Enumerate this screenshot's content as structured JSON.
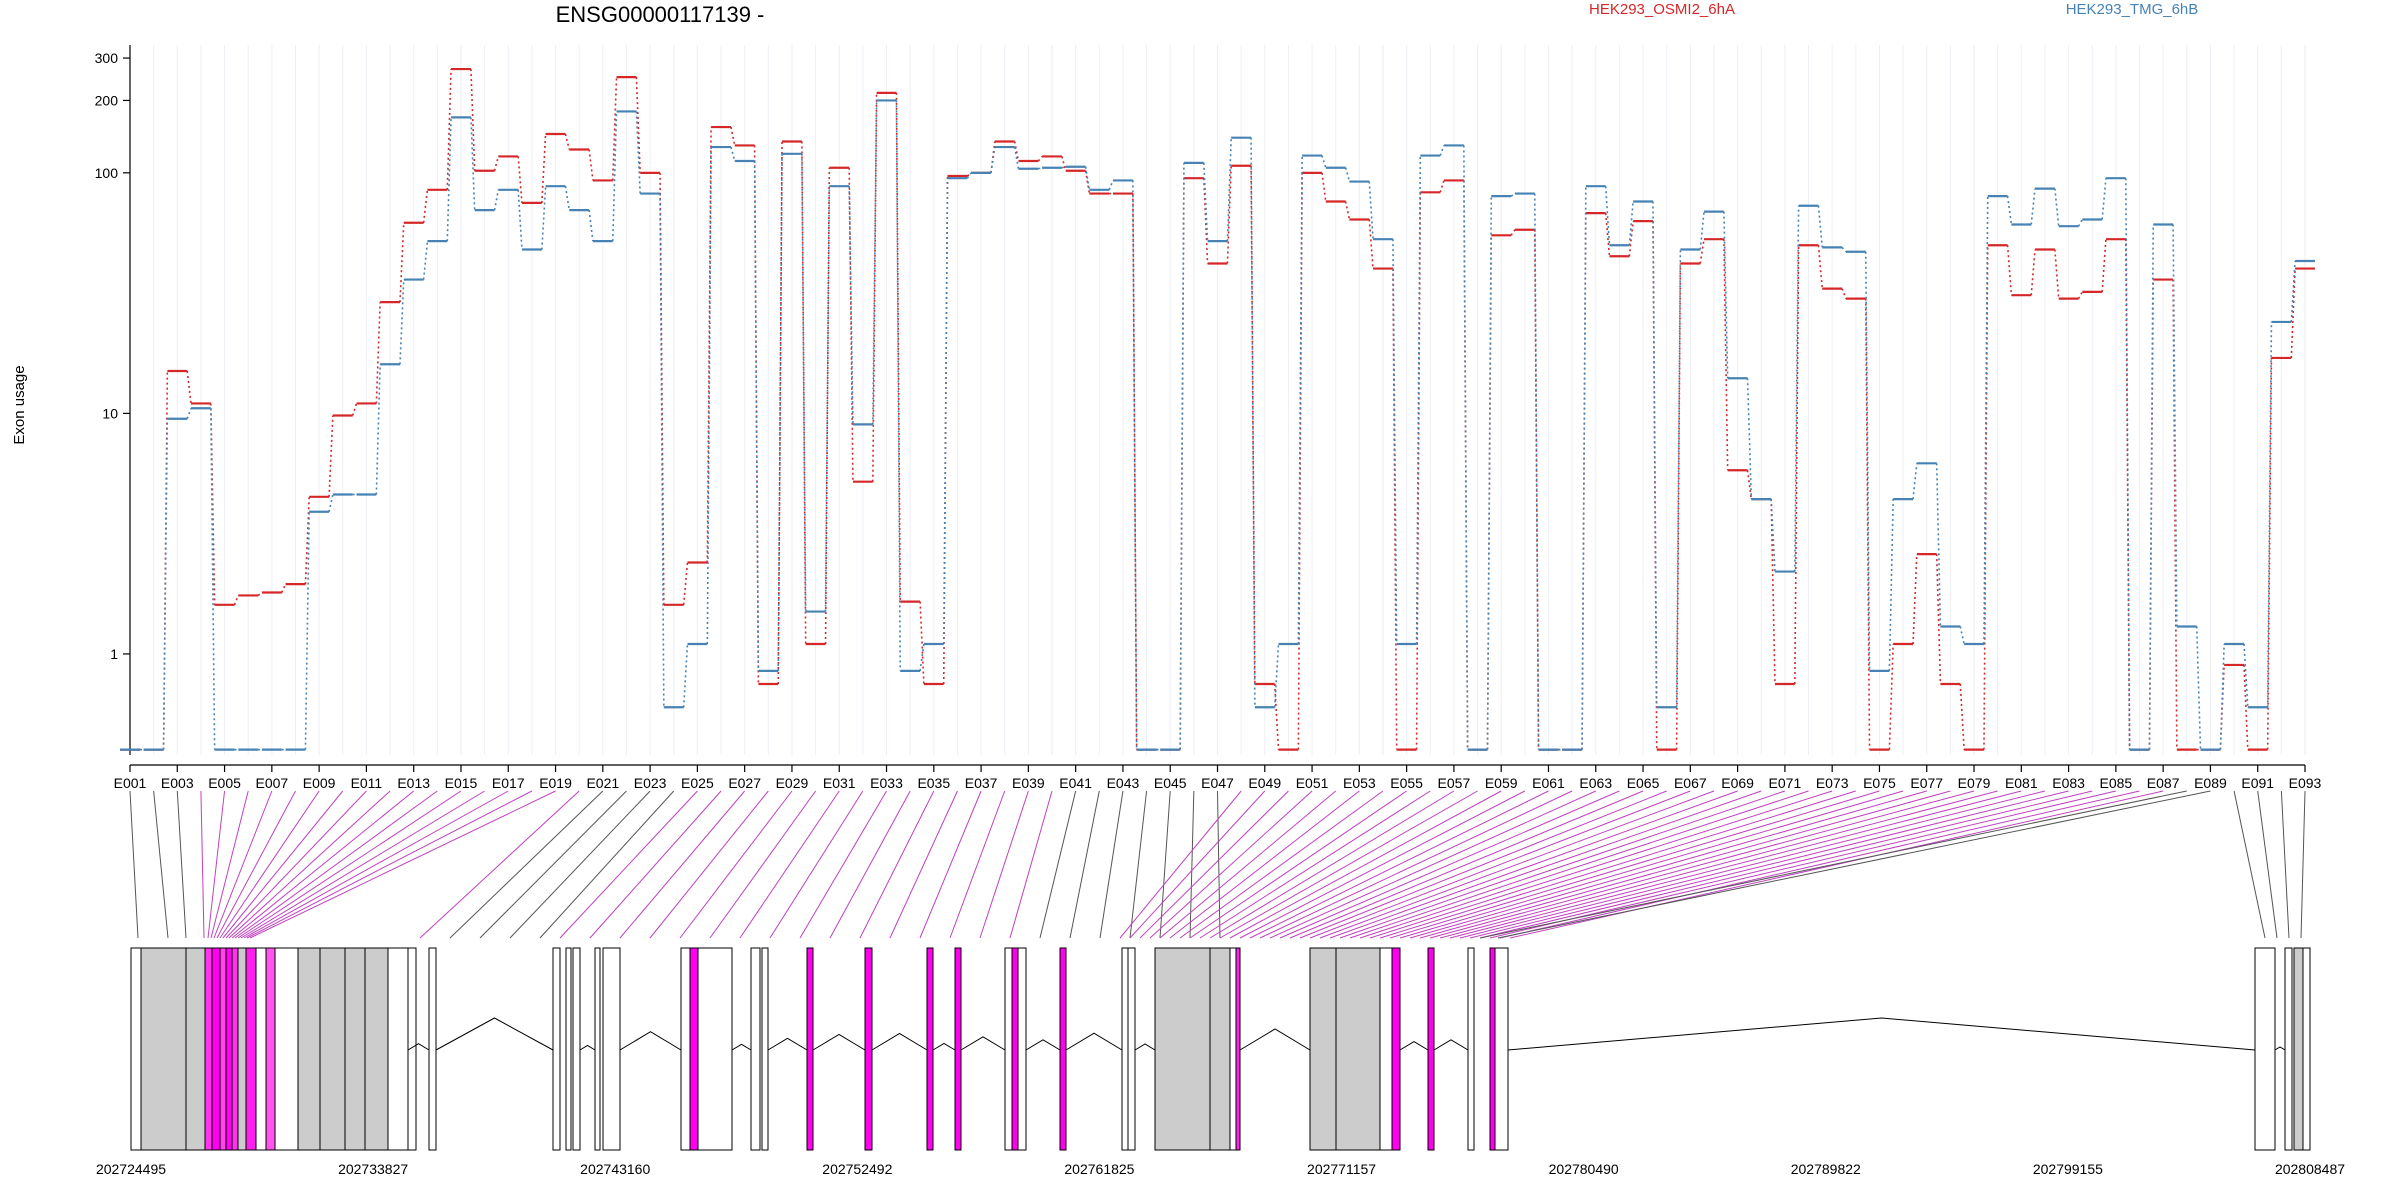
{
  "chart_data": {
    "type": "line",
    "title": "ENSG00000117139 -",
    "ylabel": "Exon usage",
    "xlabel": "",
    "y_scale": "log",
    "ylim": [
      0.38,
      340
    ],
    "y_ticks": [
      1,
      10,
      100,
      200,
      300
    ],
    "grid": "vertical, one faint line per exon",
    "legend_position": "top",
    "categories": [
      "E001",
      "E002",
      "E003",
      "E004",
      "E005",
      "E006",
      "E007",
      "E008",
      "E009",
      "E010",
      "E011",
      "E012",
      "E013",
      "E014",
      "E015",
      "E016",
      "E017",
      "E018",
      "E019",
      "E020",
      "E021",
      "E022",
      "E023",
      "E024",
      "E025",
      "E026",
      "E027",
      "E028",
      "E029",
      "E030",
      "E031",
      "E032",
      "E033",
      "E034",
      "E035",
      "E036",
      "E037",
      "E038",
      "E039",
      "E040",
      "E041",
      "E042",
      "E043",
      "E044",
      "E045",
      "E046",
      "E047",
      "E048",
      "E049",
      "E050",
      "E051",
      "E052",
      "E053",
      "E054",
      "E055",
      "E056",
      "E057",
      "E058",
      "E059",
      "E060",
      "E061",
      "E062",
      "E063",
      "E064",
      "E065",
      "E066",
      "E067",
      "E068",
      "E069",
      "E070",
      "E071",
      "E072",
      "E073",
      "E074",
      "E075",
      "E076",
      "E077",
      "E078",
      "E079",
      "E080",
      "E081",
      "E082",
      "E083",
      "E084",
      "E085",
      "E086",
      "E087",
      "E088",
      "E089",
      "E090",
      "E091",
      "E092",
      "E093"
    ],
    "x_tick_labels": [
      "E001",
      "E003",
      "E005",
      "E007",
      "E009",
      "E011",
      "E013",
      "E015",
      "E017",
      "E019",
      "E021",
      "E023",
      "E025",
      "E027",
      "E029",
      "E031",
      "E033",
      "E035",
      "E037",
      "E039",
      "E041",
      "E043",
      "E045",
      "E047",
      "E049",
      "E051",
      "E053",
      "E055",
      "E057",
      "E059",
      "E061",
      "E063",
      "E065",
      "E067",
      "E069",
      "E071",
      "E073",
      "E075",
      "E077",
      "E079",
      "E081",
      "E083",
      "E085",
      "E087",
      "E089",
      "E091",
      "E093"
    ],
    "series": [
      {
        "name": "HEK293_OSMI2_6hA",
        "color": "#d62728",
        "values": [
          0.4,
          0.4,
          15,
          11,
          1.6,
          1.75,
          1.8,
          1.95,
          4.5,
          9.8,
          11,
          29,
          62,
          85,
          270,
          102,
          117,
          75,
          145,
          125,
          93,
          250,
          100,
          1.6,
          2.4,
          155,
          130,
          0.75,
          135,
          1.1,
          105,
          5.2,
          215,
          1.65,
          0.75,
          97,
          100,
          135,
          112,
          117,
          102,
          82,
          82,
          0.4,
          0.4,
          95,
          42,
          107,
          0.75,
          0.4,
          100,
          76,
          64,
          40,
          0.4,
          83,
          93,
          0.4,
          55,
          58,
          0.4,
          0.4,
          68,
          45,
          63,
          0.4,
          42,
          53,
          5.8,
          4.4,
          0.75,
          50,
          33,
          30,
          0.4,
          1.1,
          2.6,
          0.75,
          0.4,
          50,
          31,
          48,
          30,
          32,
          53,
          0.4,
          36,
          0.4,
          0.4,
          0.9,
          0.4,
          17,
          40
        ]
      },
      {
        "name": "HEK293_TMG_6hB",
        "color": "#4682b4",
        "values": [
          0.4,
          0.4,
          9.5,
          10.5,
          0.4,
          0.4,
          0.4,
          0.4,
          3.9,
          4.6,
          4.6,
          16,
          36,
          52,
          170,
          70,
          85,
          48,
          88,
          70,
          52,
          180,
          82,
          0.6,
          1.1,
          128,
          112,
          0.85,
          120,
          1.5,
          88,
          9,
          200,
          0.85,
          1.1,
          95,
          100,
          128,
          104,
          105,
          106,
          85,
          93,
          0.4,
          0.4,
          110,
          52,
          140,
          0.6,
          1.1,
          118,
          105,
          92,
          53,
          1.1,
          118,
          130,
          0.4,
          80,
          82,
          0.4,
          0.4,
          88,
          50,
          76,
          0.6,
          48,
          69,
          14,
          4.4,
          2.2,
          73,
          49,
          47,
          0.85,
          4.4,
          6.2,
          1.3,
          1.1,
          80,
          61,
          86,
          60,
          64,
          95,
          0.4,
          61,
          1.3,
          0.4,
          1.1,
          0.6,
          24,
          43
        ]
      }
    ],
    "gene_model": {
      "coordinate_labels": [
        "202724495",
        "202733827",
        "202743160",
        "202752492",
        "202761825",
        "202771157",
        "202780490",
        "202789822",
        "202799155",
        "202808487"
      ]
    }
  }
}
